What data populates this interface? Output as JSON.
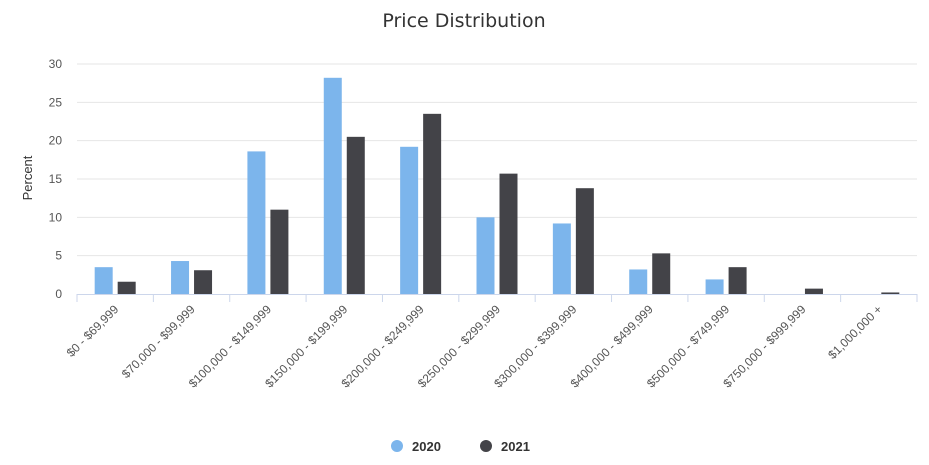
{
  "chart_data": {
    "type": "bar",
    "title": "Price Distribution",
    "ylabel": "Percent",
    "xlabel": "",
    "ylim": [
      0,
      30
    ],
    "yticks": [
      0,
      5,
      10,
      15,
      20,
      25,
      30
    ],
    "grid": true,
    "legend_position": "bottom-center",
    "categories": [
      "$0 - $69,999",
      "$70,000 - $99,999",
      "$100,000 - $149,999",
      "$150,000 - $199,999",
      "$200,000 - $249,999",
      "$250,000 - $299,999",
      "$300,000 - $399,999",
      "$400,000 - $499,999",
      "$500,000 - $749,999",
      "$750,000 - $999,999",
      "$1,000,000 +"
    ],
    "series": [
      {
        "name": "2020",
        "color": "#7cb5ec",
        "values": [
          3.5,
          4.3,
          18.6,
          28.2,
          19.2,
          10.0,
          9.2,
          3.2,
          1.9,
          0.0,
          0.0
        ]
      },
      {
        "name": "2021",
        "color": "#434348",
        "values": [
          1.6,
          3.1,
          11.0,
          20.5,
          23.5,
          15.7,
          13.8,
          5.3,
          3.5,
          0.7,
          0.2
        ]
      }
    ]
  }
}
